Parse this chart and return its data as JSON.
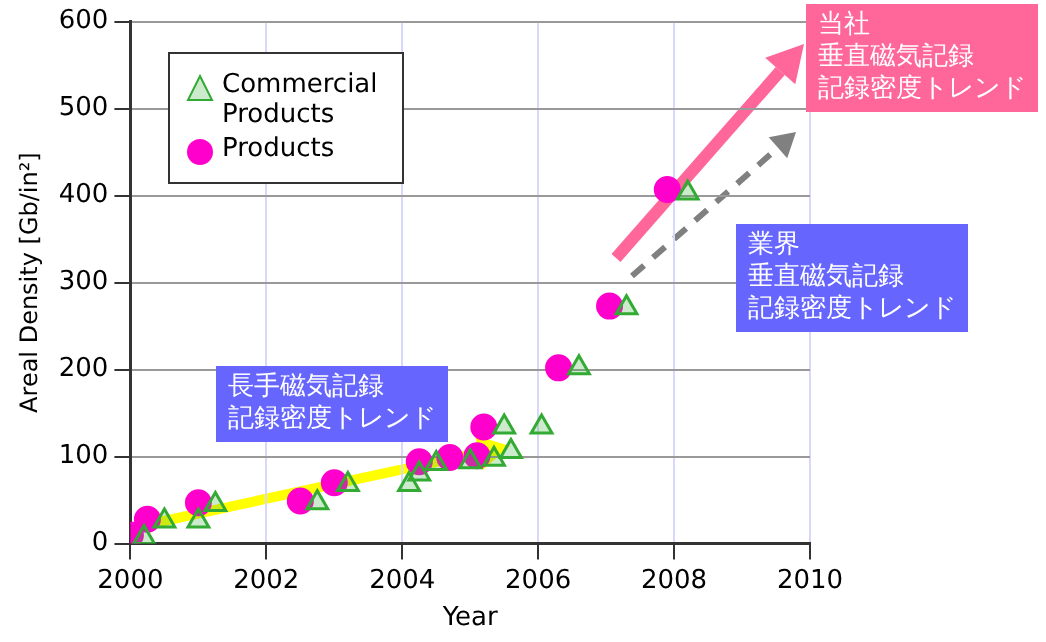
{
  "chart_data": {
    "type": "scatter",
    "xlabel": "Year",
    "ylabel": "Areal Density [Gb/in²]",
    "xlim": [
      2000,
      2010
    ],
    "xticks": [
      2000,
      2002,
      2004,
      2006,
      2008,
      2010
    ],
    "ylim": [
      0,
      600
    ],
    "yticks": [
      0,
      100,
      200,
      300,
      400,
      500,
      600
    ],
    "grid": true,
    "legend": "top left",
    "series": [
      {
        "name": "Commercial Products",
        "color": "#33aa33",
        "marker": "triangle",
        "x": [
          2000.2,
          2000.5,
          2001.0,
          2001.25,
          2002.75,
          2003.2,
          2004.1,
          2004.25,
          2004.5,
          2005.0,
          2005.35,
          2005.6,
          2005.5,
          2006.05,
          2006.6,
          2007.3,
          2008.2
        ],
        "values": [
          7,
          26,
          26,
          45,
          47,
          68,
          68,
          80,
          92,
          94,
          97,
          106,
          134,
          134,
          202,
          271,
          403
        ]
      },
      {
        "name": "Products",
        "color": "#ff00cc",
        "marker": "circle",
        "x": [
          2000.0,
          2000.25,
          2001.0,
          2002.5,
          2003.0,
          2004.25,
          2004.7,
          2005.1,
          2005.2,
          2006.3,
          2007.05,
          2007.9
        ],
        "values": [
          10,
          28,
          47,
          49,
          70,
          94,
          99,
          101,
          134,
          202,
          273,
          407
        ]
      }
    ],
    "annotations": [
      "長手磁気記録記録密度トレンド",
      "当社垂直磁気記録記録密度トレンド",
      "業界垂直磁気記録記録密度トレンド"
    ]
  }
}
